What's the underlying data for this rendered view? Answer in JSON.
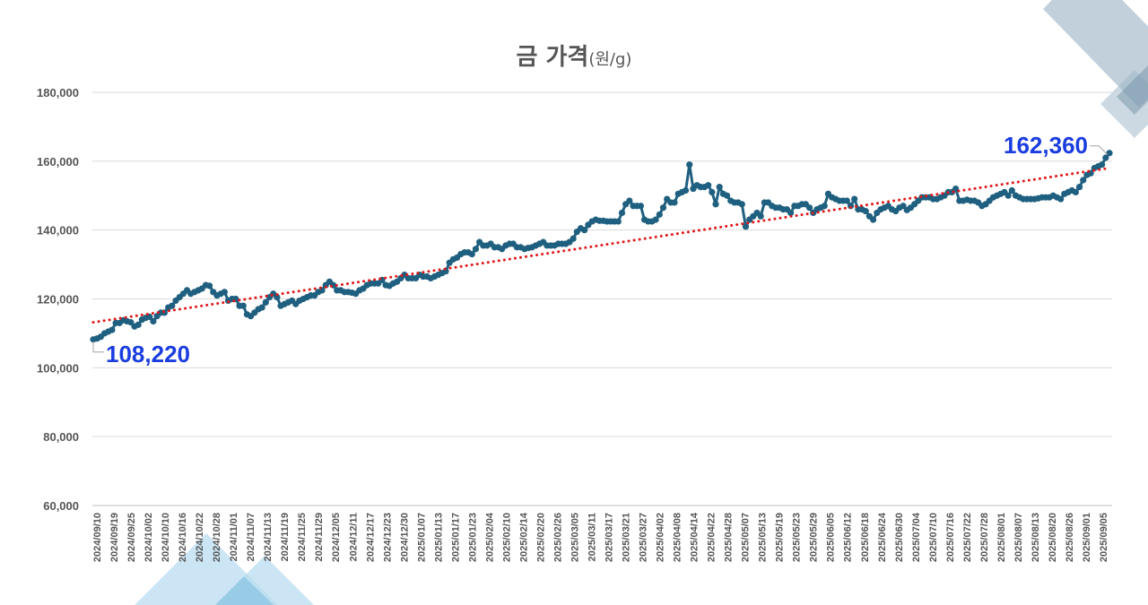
{
  "chart_data": {
    "type": "line",
    "title": "금 가격",
    "title_unit": "(원/g)",
    "ylim": [
      60000,
      180000
    ],
    "ytick_labels": [
      "60,000",
      "80,000",
      "100,000",
      "120,000",
      "140,000",
      "160,000",
      "180,000"
    ],
    "ytick_values": [
      60000,
      80000,
      100000,
      120000,
      140000,
      160000,
      180000
    ],
    "x_tick_labels": [
      "2024/09/10",
      "2024/09/19",
      "2024/09/25",
      "2024/10/02",
      "2024/10/10",
      "2024/10/16",
      "2024/10/22",
      "2024/10/28",
      "2024/11/01",
      "2024/11/07",
      "2024/11/13",
      "2024/11/19",
      "2024/11/25",
      "2024/11/29",
      "2024/12/05",
      "2024/12/11",
      "2024/12/17",
      "2024/12/23",
      "2024/12/30",
      "2025/01/07",
      "2025/01/13",
      "2025/01/17",
      "2025/01/23",
      "2025/02/04",
      "2025/02/10",
      "2025/02/14",
      "2025/02/20",
      "2025/02/26",
      "2025/03/05",
      "2025/03/11",
      "2025/03/17",
      "2025/03/21",
      "2025/03/27",
      "2025/04/02",
      "2025/04/08",
      "2025/04/14",
      "2025/04/22",
      "2025/04/28",
      "2025/05/07",
      "2025/05/13",
      "2025/05/19",
      "2025/05/23",
      "2025/05/29",
      "2025/06/05",
      "2025/06/12",
      "2025/06/18",
      "2025/06/24",
      "2025/06/30",
      "2025/07/04",
      "2025/07/10",
      "2025/07/16",
      "2025/07/22",
      "2025/07/28",
      "2025/08/01",
      "2025/08/07",
      "2025/08/13",
      "2025/08/20",
      "2025/08/26",
      "2025/09/01",
      "2025/09/05"
    ],
    "grid": true,
    "legend": "none",
    "series": [
      {
        "color": "#1f5f7f",
        "values": [
          108220,
          108500,
          109000,
          110000,
          110500,
          111000,
          113000,
          113000,
          113800,
          113500,
          113200,
          112000,
          112500,
          114000,
          114500,
          114800,
          113500,
          115000,
          116000,
          116000,
          117500,
          118000,
          119500,
          120500,
          121500,
          122500,
          121500,
          122000,
          122500,
          123000,
          124000,
          123800,
          122000,
          121000,
          121500,
          122000,
          119500,
          120000,
          120000,
          118000,
          118000,
          115500,
          115000,
          116000,
          117000,
          117500,
          119000,
          120500,
          121500,
          120500,
          118000,
          118500,
          119000,
          119500,
          118500,
          119500,
          120000,
          120500,
          121000,
          121000,
          122000,
          122500,
          124000,
          125000,
          124000,
          122500,
          122500,
          122000,
          122000,
          121800,
          121500,
          122500,
          123000,
          124000,
          124500,
          124500,
          124500,
          125500,
          124000,
          123800,
          124500,
          125000,
          126000,
          127000,
          126000,
          126000,
          126000,
          127000,
          126500,
          126500,
          126000,
          126500,
          127000,
          127500,
          128000,
          130500,
          131500,
          132000,
          133000,
          133500,
          133500,
          133000,
          134500,
          136500,
          135500,
          135500,
          136000,
          135000,
          135000,
          134500,
          135500,
          136000,
          136000,
          135000,
          135000,
          134500,
          134800,
          135000,
          135500,
          136000,
          136500,
          135500,
          135500,
          135500,
          136000,
          136000,
          136000,
          136500,
          137500,
          139500,
          140500,
          140000,
          141500,
          142500,
          143000,
          142700,
          142700,
          142500,
          142500,
          142500,
          142500,
          145000,
          147500,
          148500,
          147000,
          147000,
          147000,
          143000,
          142500,
          142500,
          143000,
          144500,
          146500,
          149000,
          148000,
          148000,
          150500,
          151000,
          151500,
          159000,
          152000,
          153000,
          152500,
          152500,
          153000,
          151000,
          147500,
          152500,
          150500,
          150000,
          148500,
          148000,
          148000,
          147500,
          141000,
          143000,
          144000,
          145000,
          144000,
          148000,
          148000,
          147000,
          146500,
          146500,
          146000,
          146000,
          145000,
          147000,
          147000,
          147500,
          147500,
          146500,
          145000,
          146000,
          146500,
          147000,
          150500,
          149500,
          149000,
          148500,
          148500,
          148500,
          147000,
          149000,
          146000,
          146000,
          145500,
          144000,
          143000,
          145000,
          146000,
          146500,
          147000,
          146000,
          145500,
          146500,
          147000,
          145800,
          146500,
          147500,
          148500,
          149500,
          149500,
          149500,
          149000,
          149000,
          149500,
          150000,
          151000,
          151000,
          152000,
          148500,
          148500,
          148800,
          148500,
          148500,
          148000,
          147000,
          147500,
          148500,
          149500,
          150000,
          150500,
          151000,
          150000,
          151500,
          150000,
          149500,
          149000,
          149000,
          149000,
          149000,
          149200,
          149500,
          149500,
          149500,
          150000,
          149500,
          149000,
          150500,
          151000,
          151500,
          151000,
          152500,
          154500,
          156000,
          156500,
          158000,
          158500,
          159000,
          161000,
          162360
        ]
      }
    ],
    "trendline": {
      "type": "linear",
      "color": "#e01818",
      "start": 113200,
      "end": 158000
    },
    "annotations": [
      {
        "label": "108,220",
        "value": 108220,
        "at": "first"
      },
      {
        "label": "162,360",
        "value": 162360,
        "at": "last"
      }
    ]
  }
}
